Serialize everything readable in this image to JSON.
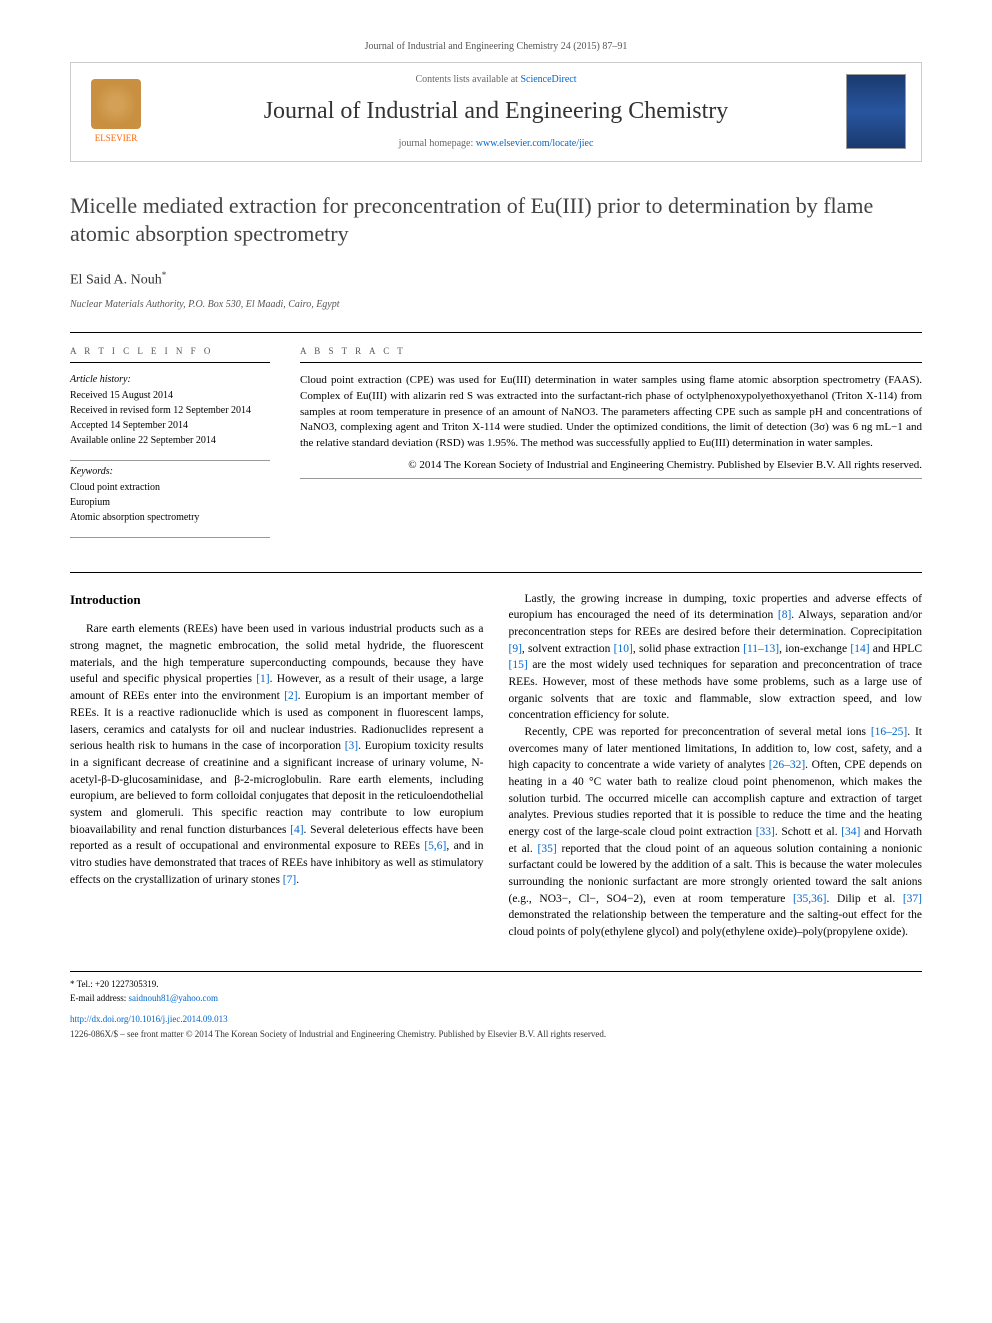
{
  "header": {
    "journal_ref": "Journal of Industrial and Engineering Chemistry 24 (2015) 87–91",
    "contents_prefix": "Contents lists available at ",
    "contents_link": "ScienceDirect",
    "journal_name": "Journal of Industrial and Engineering Chemistry",
    "homepage_prefix": "journal homepage: ",
    "homepage_url": "www.elsevier.com/locate/jiec",
    "elsevier_label": "ELSEVIER",
    "colors": {
      "link": "#0066cc",
      "elsevier_orange": "#ff6600",
      "cover_bg": "#1a3a6e"
    }
  },
  "article": {
    "title": "Micelle mediated extraction for preconcentration of Eu(III) prior to determination by flame atomic absorption spectrometry",
    "author": "El Said A. Nouh",
    "author_marker": "*",
    "affiliation": "Nuclear Materials Authority, P.O. Box 530, El Maadi, Cairo, Egypt"
  },
  "article_info": {
    "heading": "A R T I C L E  I N F O",
    "history_label": "Article history:",
    "history": [
      "Received 15 August 2014",
      "Received in revised form 12 September 2014",
      "Accepted 14 September 2014",
      "Available online 22 September 2014"
    ],
    "keywords_label": "Keywords:",
    "keywords": [
      "Cloud point extraction",
      "Europium",
      "Atomic absorption spectrometry"
    ]
  },
  "abstract": {
    "heading": "A B S T R A C T",
    "text": "Cloud point extraction (CPE) was used for Eu(III) determination in water samples using flame atomic absorption spectrometry (FAAS). Complex of Eu(III) with alizarin red S was extracted into the surfactant-rich phase of octylphenoxypolyethoxyethanol (Triton X-114) from samples at room temperature in presence of an amount of NaNO3. The parameters affecting CPE such as sample pH and concentrations of NaNO3, complexing agent and Triton X-114 were studied. Under the optimized conditions, the limit of detection (3σ) was 6 ng mL−1 and the relative standard deviation (RSD) was 1.95%. The method was successfully applied to Eu(III) determination in water samples.",
    "copyright": "© 2014 The Korean Society of Industrial and Engineering Chemistry. Published by Elsevier B.V. All rights reserved."
  },
  "body": {
    "section_heading": "Introduction",
    "col1_para1": "Rare earth elements (REEs) have been used in various industrial products such as a strong magnet, the magnetic embrocation, the solid metal hydride, the fluorescent materials, and the high temperature superconducting compounds, because they have useful and specific physical properties [1]. However, as a result of their usage, a large amount of REEs enter into the environment [2]. Europium is an important member of REEs. It is a reactive radionuclide which is used as component in fluorescent lamps, lasers, ceramics and catalysts for oil and nuclear industries. Radionuclides represent a serious health risk to humans in the case of incorporation [3]. Europium toxicity results in a significant decrease of creatinine and a significant increase of urinary volume, N-acetyl-β-D-glucosaminidase, and β-2-microglobulin. Rare earth elements, including europium, are believed to form colloidal conjugates that deposit in the reticuloendothelial system and glomeruli. This specific reaction may contribute to low europium bioavailability and renal function disturbances [4]. Several deleterious effects have been reported as a result of occupational and environmental exposure to REEs [5,6], and in vitro studies have demonstrated that traces of REEs have inhibitory as well as stimulatory effects on the crystallization of urinary stones [7].",
    "col2_para1": "Lastly, the growing increase in dumping, toxic properties and adverse effects of europium has encouraged the need of its determination [8]. Always, separation and/or preconcentration steps for REEs are desired before their determination. Coprecipitation [9], solvent extraction [10], solid phase extraction [11–13], ion-exchange [14] and HPLC [15] are the most widely used techniques for separation and preconcentration of trace REEs. However, most of these methods have some problems, such as a large use of organic solvents that are toxic and flammable, slow extraction speed, and low concentration efficiency for solute.",
    "col2_para2": "Recently, CPE was reported for preconcentration of several metal ions [16–25]. It overcomes many of later mentioned limitations, In addition to, low cost, safety, and a high capacity to concentrate a wide variety of analytes [26–32]. Often, CPE depends on heating in a 40 °C water bath to realize cloud point phenomenon, which makes the solution turbid. The occurred micelle can accomplish capture and extraction of target analytes. Previous studies reported that it is possible to reduce the time and the heating energy cost of the large-scale cloud point extraction [33]. Schott et al. [34] and Horvath et al. [35] reported that the cloud point of an aqueous solution containing a nonionic surfactant could be lowered by the addition of a salt. This is because the water molecules surrounding the nonionic surfactant are more strongly oriented toward the salt anions (e.g., NO3−, Cl−, SO4−2), even at room temperature [35,36]. Dilip et al. [37] demonstrated the relationship between the temperature and the salting-out effect for the cloud points of poly(ethylene glycol) and poly(ethylene oxide)–poly(propylene oxide).",
    "ref_color": "#0066cc"
  },
  "footer": {
    "tel_label": "* Tel.: +20 1227305319.",
    "email_label": "E-mail address: ",
    "email": "saidnouh81@yahoo.com",
    "doi": "http://dx.doi.org/10.1016/j.jiec.2014.09.013",
    "issn_line": "1226-086X/$ – see front matter © 2014 The Korean Society of Industrial and Engineering Chemistry. Published by Elsevier B.V. All rights reserved."
  }
}
